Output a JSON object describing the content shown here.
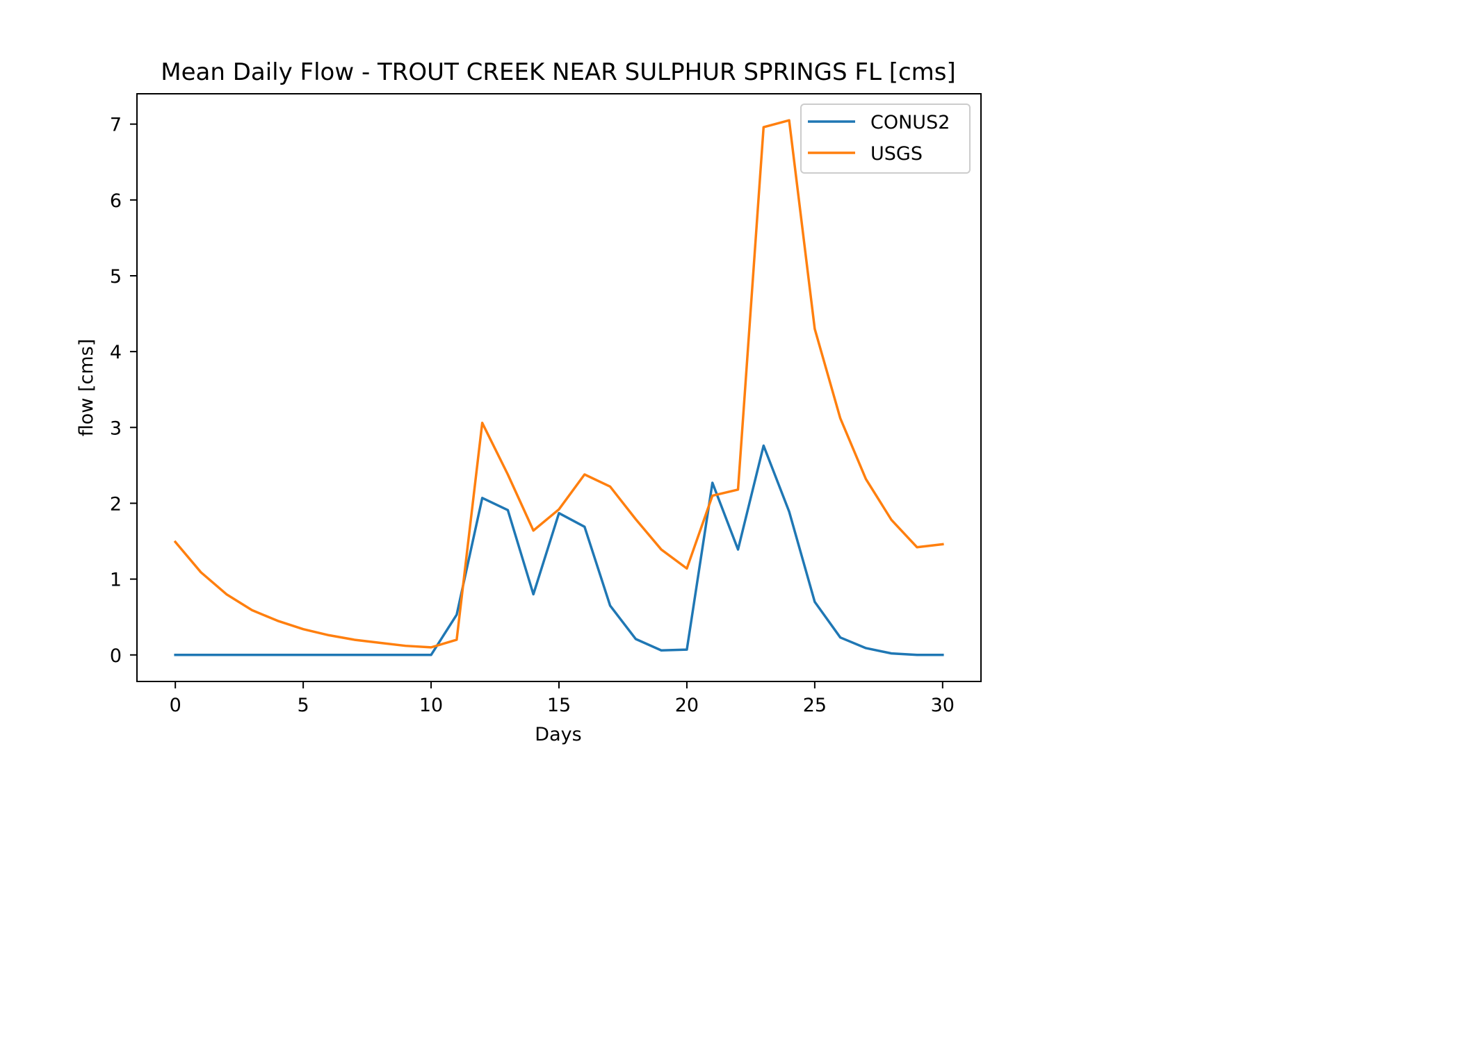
{
  "chart_data": {
    "type": "line",
    "title": "Mean Daily Flow - TROUT CREEK NEAR SULPHUR SPRINGS FL [cms]",
    "xlabel": "Days",
    "ylabel": "flow [cms]",
    "xlim": [
      -1.5,
      31.5
    ],
    "ylim": [
      -0.35,
      7.4
    ],
    "xticks": [
      0,
      5,
      10,
      15,
      20,
      25,
      30
    ],
    "yticks": [
      0,
      1,
      2,
      3,
      4,
      5,
      6,
      7
    ],
    "grid": false,
    "legend_position": "top-right",
    "x": [
      0,
      1,
      2,
      3,
      4,
      5,
      6,
      7,
      8,
      9,
      10,
      11,
      12,
      13,
      14,
      15,
      16,
      17,
      18,
      19,
      20,
      21,
      22,
      23,
      24,
      25,
      26,
      27,
      28,
      29,
      30
    ],
    "series": [
      {
        "name": "CONUS2",
        "color": "#1f77b4",
        "values": [
          0,
          0,
          0,
          0,
          0,
          0,
          0,
          0,
          0,
          0,
          0,
          0.53,
          2.07,
          1.91,
          0.8,
          1.87,
          1.69,
          0.65,
          0.21,
          0.06,
          0.07,
          2.27,
          1.39,
          2.76,
          1.89,
          0.7,
          0.23,
          0.09,
          0.02,
          0,
          0
        ]
      },
      {
        "name": "USGS",
        "color": "#ff7f0e",
        "values": [
          1.49,
          1.09,
          0.8,
          0.59,
          0.45,
          0.34,
          0.26,
          0.2,
          0.16,
          0.12,
          0.1,
          0.2,
          3.06,
          2.38,
          1.64,
          1.92,
          2.38,
          2.22,
          1.79,
          1.39,
          1.14,
          2.1,
          2.18,
          6.96,
          7.05,
          4.3,
          3.12,
          2.32,
          1.78,
          1.42,
          1.46
        ]
      }
    ]
  }
}
